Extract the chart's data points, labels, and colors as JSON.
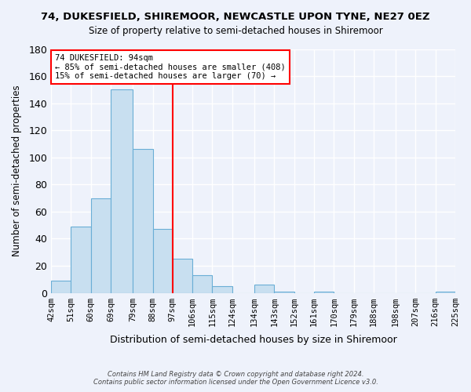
{
  "title": "74, DUKESFIELD, SHIREMOOR, NEWCASTLE UPON TYNE, NE27 0EZ",
  "subtitle": "Size of property relative to semi-detached houses in Shiremoor",
  "xlabel": "Distribution of semi-detached houses by size in Shiremoor",
  "ylabel": "Number of semi-detached properties",
  "bin_edges": [
    42,
    51,
    60,
    69,
    79,
    88,
    97,
    106,
    115,
    124,
    134,
    143,
    152,
    161,
    170,
    179,
    188,
    198,
    207,
    216,
    225
  ],
  "bin_labels": [
    "42sqm",
    "51sqm",
    "60sqm",
    "69sqm",
    "79sqm",
    "88sqm",
    "97sqm",
    "106sqm",
    "115sqm",
    "124sqm",
    "134sqm",
    "143sqm",
    "152sqm",
    "161sqm",
    "170sqm",
    "179sqm",
    "188sqm",
    "198sqm",
    "207sqm",
    "216sqm",
    "225sqm"
  ],
  "bar_values": [
    9,
    49,
    70,
    150,
    106,
    47,
    25,
    13,
    5,
    0,
    6,
    1,
    0,
    1,
    0,
    0,
    0,
    0,
    0,
    1
  ],
  "bar_color": "#c8dff0",
  "bar_edge_color": "#6aaed6",
  "vline_index": 6,
  "vline_color": "red",
  "annotation_title": "74 DUKESFIELD: 94sqm",
  "annotation_line1": "← 85% of semi-detached houses are smaller (408)",
  "annotation_line2": "15% of semi-detached houses are larger (70) →",
  "ylim": [
    0,
    180
  ],
  "yticks": [
    0,
    20,
    40,
    60,
    80,
    100,
    120,
    140,
    160,
    180
  ],
  "footer_line1": "Contains HM Land Registry data © Crown copyright and database right 2024.",
  "footer_line2": "Contains public sector information licensed under the Open Government Licence v3.0.",
  "bg_color": "#eef2fb"
}
